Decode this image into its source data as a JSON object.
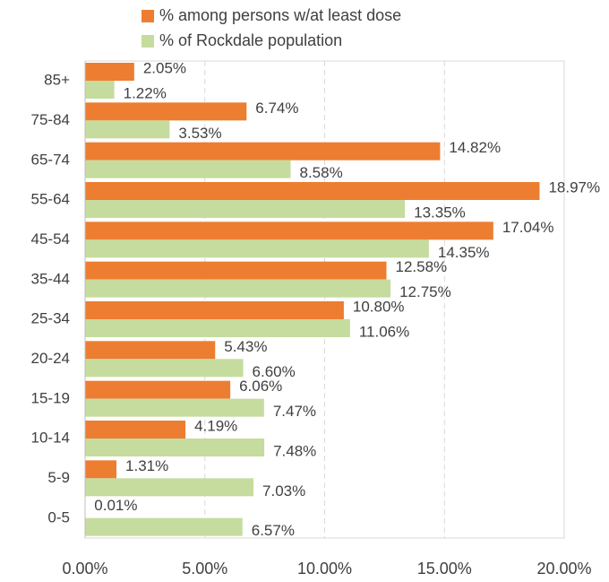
{
  "chart_data": {
    "type": "hbar",
    "categories": [
      "85+",
      "75-84",
      "65-74",
      "55-64",
      "45-54",
      "35-44",
      "25-34",
      "20-24",
      "15-19",
      "10-14",
      "5-9",
      "0-5"
    ],
    "series": [
      {
        "name": "% among persons w/at least dose",
        "color": "#ed7d31",
        "values": [
          2.05,
          6.74,
          14.82,
          18.97,
          17.04,
          12.58,
          10.8,
          5.43,
          6.06,
          4.19,
          1.31,
          0.01
        ],
        "value_labels": [
          "2.05%",
          "6.74%",
          "14.82%",
          "18.97%",
          "17.04%",
          "12.58%",
          "10.80%",
          "5.43%",
          "6.06%",
          "4.19%",
          "1.31%",
          "0.01%"
        ]
      },
      {
        "name": "% of Rockdale population",
        "color": "#c5dc9e",
        "values": [
          1.22,
          3.53,
          8.58,
          13.35,
          14.35,
          12.75,
          11.06,
          6.6,
          7.47,
          7.48,
          7.03,
          6.57
        ],
        "value_labels": [
          "1.22%",
          "3.53%",
          "8.58%",
          "13.35%",
          "14.35%",
          "12.75%",
          "11.06%",
          "6.60%",
          "7.47%",
          "7.48%",
          "7.03%",
          "6.57%"
        ]
      }
    ],
    "xlim": [
      0,
      20
    ],
    "xticks": [
      {
        "value": 0,
        "label": "0.00%"
      },
      {
        "value": 5,
        "label": "5.00%"
      },
      {
        "value": 10,
        "label": "10.00%"
      },
      {
        "value": 15,
        "label": "15.00%"
      },
      {
        "value": 20,
        "label": "20.00%"
      }
    ],
    "grid": true,
    "legend": "top"
  }
}
